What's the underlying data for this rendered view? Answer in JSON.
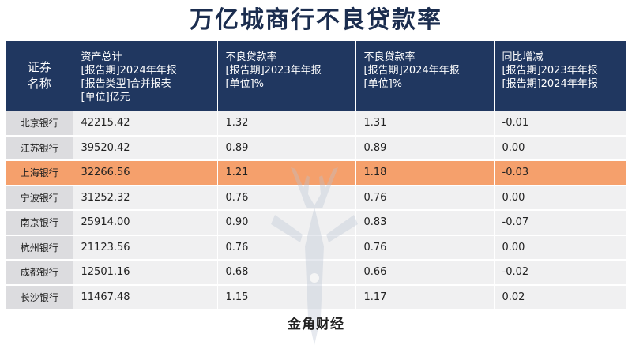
{
  "title": "万亿城商行不良贷款率",
  "footer": "金角财经",
  "header": {
    "col1": [
      "证券",
      "名称"
    ],
    "col2": [
      "资产总计",
      "[报告期]2024年年报",
      "[报告类型]合并报表",
      "[单位]亿元"
    ],
    "col3": [
      "不良贷款率",
      "[报告期]2023年年报",
      "[单位]%"
    ],
    "col4": [
      "不良贷款率",
      "[报告期]2024年年报",
      "[单位]%"
    ],
    "col5": [
      "同比增减",
      "[报告期]2023年年报",
      "[报告期]2024年年报"
    ]
  },
  "rows": [
    {
      "name": "北京银行",
      "assets": "42215.42",
      "npl2023": "1.32",
      "npl2024": "1.31",
      "change": "-0.01"
    },
    {
      "name": "江苏银行",
      "assets": "39520.42",
      "npl2023": "0.89",
      "npl2024": "0.89",
      "change": "0.00"
    },
    {
      "name": "上海银行",
      "assets": "32266.56",
      "npl2023": "1.21",
      "npl2024": "1.18",
      "change": "-0.03"
    },
    {
      "name": "宁波银行",
      "assets": "31252.32",
      "npl2023": "0.76",
      "npl2024": "0.76",
      "change": "0.00"
    },
    {
      "name": "南京银行",
      "assets": "25914.00",
      "npl2023": "0.90",
      "npl2024": "0.83",
      "change": "-0.07"
    },
    {
      "name": "杭州银行",
      "assets": "21123.56",
      "npl2023": "0.76",
      "npl2024": "0.76",
      "change": "0.00"
    },
    {
      "name": "成都银行",
      "assets": "12501.16",
      "npl2023": "0.68",
      "npl2024": "0.66",
      "change": "-0.02"
    },
    {
      "name": "长沙银行",
      "assets": "11467.48",
      "npl2023": "1.15",
      "npl2024": "1.17",
      "change": "0.02"
    }
  ],
  "highlight_row": 2,
  "colors": {
    "header_bg": "#203760",
    "highlight": "#f5a06c",
    "row_bg": "#f0f0f1",
    "name_bg": "#dcdcdf"
  }
}
